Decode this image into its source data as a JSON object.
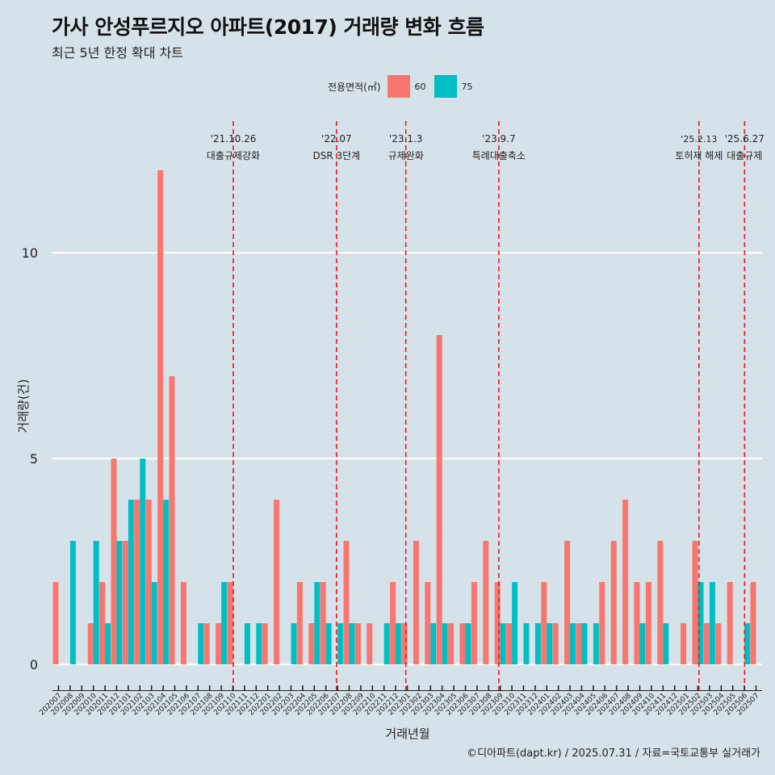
{
  "title": "가사 안성푸르지오 아파트(2017) 거래량 변화 흐름",
  "subtitle": "최근 5년 한정 확대 차트",
  "caption": "©디아파트(dapt.kr) / 2025.07.31 / 자료=국토교통부 실거래가",
  "colors": {
    "background": "#d6e2ea",
    "s60": "#f8766d",
    "s75": "#00bfc4",
    "event_line": "#e8191b",
    "grid": "#ffffff"
  },
  "chart_data": {
    "type": "bar",
    "xlabel": "거래년월",
    "ylabel": "거래량(건)",
    "ylim": [
      -0.5,
      12.5
    ],
    "yticks": [
      0,
      5,
      10
    ],
    "grid": true,
    "legend": {
      "title": "전용면적(㎡)",
      "position": "top",
      "entries": [
        "60",
        "75"
      ]
    },
    "categories": [
      "202007",
      "202008",
      "202009",
      "202010",
      "202011",
      "202012",
      "202101",
      "202102",
      "202103",
      "202104",
      "202105",
      "202106",
      "202107",
      "202108",
      "202109",
      "202110",
      "202111",
      "202112",
      "202201",
      "202202",
      "202203",
      "202204",
      "202205",
      "202206",
      "202207",
      "202208",
      "202209",
      "202210",
      "202211",
      "202212",
      "202301",
      "202302",
      "202303",
      "202304",
      "202305",
      "202306",
      "202307",
      "202308",
      "202309",
      "202310",
      "202311",
      "202312",
      "202401",
      "202402",
      "202403",
      "202404",
      "202405",
      "202406",
      "202407",
      "202408",
      "202409",
      "202410",
      "202411",
      "202412",
      "202501",
      "202502",
      "202503",
      "202504",
      "202505",
      "202506",
      "202507"
    ],
    "series": [
      {
        "name": "60",
        "values": [
          2,
          0,
          0,
          1,
          2,
          5,
          3,
          4,
          4,
          12,
          7,
          2,
          0,
          1,
          1,
          2,
          0,
          0,
          1,
          4,
          0,
          2,
          1,
          2,
          0,
          3,
          1,
          1,
          0,
          2,
          1,
          3,
          2,
          8,
          1,
          1,
          2,
          3,
          2,
          1,
          0,
          0,
          2,
          1,
          3,
          1,
          0,
          2,
          3,
          4,
          2,
          2,
          3,
          0,
          1,
          3,
          1,
          1,
          2,
          0,
          2
        ]
      },
      {
        "name": "75",
        "values": [
          0,
          3,
          0,
          3,
          1,
          3,
          4,
          5,
          2,
          4,
          0,
          0,
          1,
          0,
          2,
          0,
          1,
          1,
          0,
          0,
          1,
          0,
          2,
          1,
          1,
          1,
          0,
          0,
          1,
          1,
          0,
          0,
          1,
          1,
          0,
          1,
          0,
          0,
          1,
          2,
          1,
          1,
          1,
          0,
          1,
          1,
          1,
          0,
          0,
          0,
          1,
          0,
          1,
          0,
          0,
          2,
          2,
          0,
          0,
          1,
          0
        ]
      }
    ],
    "events": [
      {
        "date": "'21.10.26",
        "label": "대출규제강화"
      },
      {
        "date": "'22.07",
        "label": "DSR 3단계"
      },
      {
        "date": "'23.1.3",
        "label": "규제완화"
      },
      {
        "date": "'23.9.7",
        "label": "특례대출축소"
      },
      {
        "date": "'25.2.13",
        "label": "토허제 해제"
      },
      {
        "date": "'25.6.27",
        "label": "대출규제"
      }
    ]
  }
}
